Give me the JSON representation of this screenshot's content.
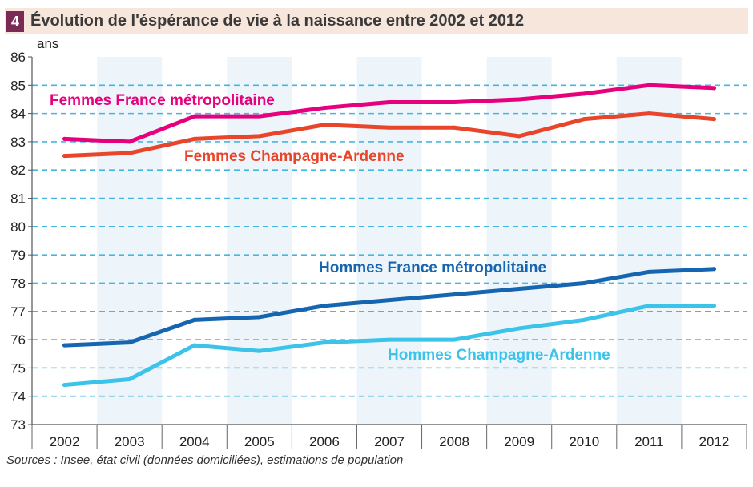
{
  "header": {
    "number": "4",
    "title": "Évolution de l'éspérance de vie à la naissance entre 2002 et 2012"
  },
  "footer": {
    "source": "Sources : Insee, état civil (données domiciliées), estimations de population"
  },
  "chart_data": {
    "type": "line",
    "title": "Évolution de l'éspérance de vie à la naissance entre 2002 et 2012",
    "ylabel": "ans",
    "xlabel": "",
    "ylim": [
      73,
      86
    ],
    "yticks": [
      73,
      74,
      75,
      76,
      77,
      78,
      79,
      80,
      81,
      82,
      83,
      84,
      85,
      86
    ],
    "grid": "horizontal dashed",
    "legend": "inline labels",
    "categories": [
      "2002",
      "2003",
      "2004",
      "2005",
      "2006",
      "2007",
      "2008",
      "2009",
      "2010",
      "2011",
      "2012"
    ],
    "series": [
      {
        "name": "Femmes France métropolitaine",
        "color": "#e6007e",
        "values": [
          83.1,
          83.0,
          83.9,
          83.9,
          84.2,
          84.4,
          84.4,
          84.5,
          84.7,
          85.0,
          84.9
        ]
      },
      {
        "name": "Femmes Champagne-Ardenne",
        "color": "#e8452b",
        "values": [
          82.5,
          82.6,
          83.1,
          83.2,
          83.6,
          83.5,
          83.5,
          83.2,
          83.8,
          84.0,
          83.8
        ]
      },
      {
        "name": "Hommes France métropolitaine",
        "color": "#1565b0",
        "values": [
          75.8,
          75.9,
          76.7,
          76.8,
          77.2,
          77.4,
          77.6,
          77.8,
          78.0,
          78.4,
          78.5
        ]
      },
      {
        "name": "Hommes Champagne-Ardenne",
        "color": "#3cc3ea",
        "values": [
          74.4,
          74.6,
          75.8,
          75.6,
          75.9,
          76.0,
          76.0,
          76.4,
          76.7,
          77.2,
          77.2
        ]
      }
    ]
  }
}
